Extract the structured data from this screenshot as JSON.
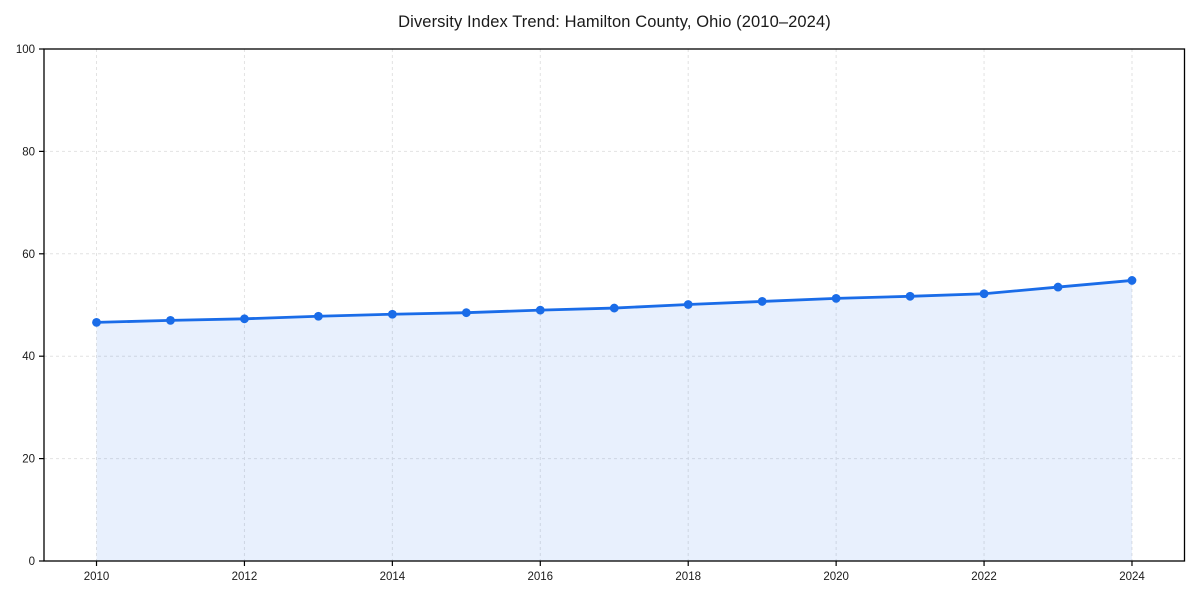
{
  "chart_data": {
    "type": "line",
    "title": "Diversity Index Trend: Hamilton County, Ohio (2010–2024)",
    "xlabel": "",
    "ylabel": "",
    "x": [
      2010,
      2011,
      2012,
      2013,
      2014,
      2015,
      2016,
      2017,
      2018,
      2019,
      2020,
      2021,
      2022,
      2023,
      2024
    ],
    "series": [
      {
        "name": "Diversity Index",
        "values": [
          46.6,
          47.0,
          47.3,
          47.8,
          48.2,
          48.5,
          49.0,
          49.4,
          50.1,
          50.7,
          51.3,
          51.7,
          52.2,
          53.5,
          54.8
        ]
      }
    ],
    "xlim": [
      2009.29,
      2024.71
    ],
    "ylim": [
      0,
      100
    ],
    "x_ticks": [
      2010,
      2012,
      2014,
      2016,
      2018,
      2020,
      2022,
      2024
    ],
    "y_ticks": [
      0,
      20,
      40,
      60,
      80,
      100
    ],
    "grid": true,
    "grid_style": "dashed",
    "legend_position": "none",
    "marker": "circle",
    "line_color": "#1a6ce8",
    "fill_color": "rgba(26, 108, 232, 0.10)",
    "grid_color": "#e2e2e2",
    "axis_color": "#000000",
    "tick_label_color": "#1a1a1a",
    "background_color": "#ffffff"
  }
}
